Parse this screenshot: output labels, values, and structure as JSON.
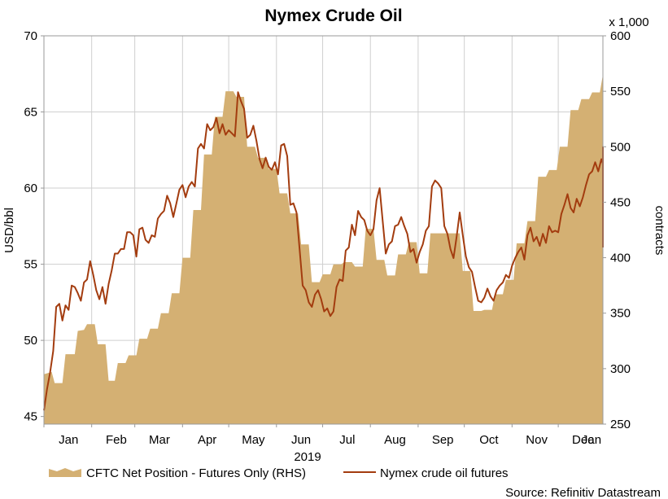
{
  "chart_data": {
    "type": "area",
    "title": "Nymex Crude Oil",
    "xlabel": "2019",
    "ylabel": "USD/bbl",
    "ylabel_right": "contracts",
    "right_multiplier_label": "x 1,000",
    "source": "Source: Refinitiv Datastream",
    "grid": true,
    "legend_position": "bottom",
    "ylim": [
      44.5,
      70
    ],
    "ylim_right": [
      250,
      600
    ],
    "yticks": [
      "45",
      "50",
      "55",
      "60",
      "65",
      "70"
    ],
    "yticks_right": [
      "250",
      "300",
      "350",
      "400",
      "450",
      "500",
      "550",
      "600"
    ],
    "x_range_days": [
      0,
      363
    ],
    "x_tick_labels": [
      {
        "label": "Jan",
        "day": 16
      },
      {
        "label": "Feb",
        "day": 47
      },
      {
        "label": "Mar",
        "day": 75
      },
      {
        "label": "Apr",
        "day": 106
      },
      {
        "label": "May",
        "day": 136
      },
      {
        "label": "Jun",
        "day": 167
      },
      {
        "label": "Jul",
        "day": 197
      },
      {
        "label": "Aug",
        "day": 228
      },
      {
        "label": "Sep",
        "day": 259
      },
      {
        "label": "Oct",
        "day": 289
      },
      {
        "label": "Nov",
        "day": 320
      },
      {
        "label": "Dec",
        "day": 350
      },
      {
        "label": "Jan",
        "day": 377
      }
    ],
    "x_gridlines_days": [
      0,
      31,
      59,
      90,
      120,
      151,
      181,
      212,
      243,
      273,
      304,
      334,
      365
    ],
    "series": [
      {
        "name": "CFTC Net Position - Futures Only (RHS)",
        "type": "area",
        "axis": "right",
        "color": "#d4b073",
        "points": [
          [
            0,
            295
          ],
          [
            5,
            297
          ],
          [
            7,
            287
          ],
          [
            12,
            287
          ],
          [
            14,
            313
          ],
          [
            20,
            313
          ],
          [
            22,
            334
          ],
          [
            26,
            335
          ],
          [
            28,
            340
          ],
          [
            33,
            340
          ],
          [
            35,
            322
          ],
          [
            40,
            322
          ],
          [
            42,
            289
          ],
          [
            46,
            289
          ],
          [
            48,
            305
          ],
          [
            53,
            305
          ],
          [
            55,
            312
          ],
          [
            60,
            312
          ],
          [
            62,
            327
          ],
          [
            67,
            327
          ],
          [
            69,
            336
          ],
          [
            74,
            336
          ],
          [
            76,
            350
          ],
          [
            81,
            350
          ],
          [
            83,
            368
          ],
          [
            88,
            368
          ],
          [
            90,
            400
          ],
          [
            95,
            400
          ],
          [
            97,
            443
          ],
          [
            102,
            443
          ],
          [
            104,
            493
          ],
          [
            109,
            493
          ],
          [
            111,
            527
          ],
          [
            116,
            527
          ],
          [
            118,
            550
          ],
          [
            123,
            550
          ],
          [
            125,
            545
          ],
          [
            130,
            545
          ],
          [
            132,
            500
          ],
          [
            137,
            500
          ],
          [
            139,
            490
          ],
          [
            144,
            490
          ],
          [
            146,
            480
          ],
          [
            151,
            480
          ],
          [
            153,
            458
          ],
          [
            158,
            458
          ],
          [
            160,
            440
          ],
          [
            165,
            440
          ],
          [
            167,
            412
          ],
          [
            172,
            412
          ],
          [
            174,
            378
          ],
          [
            179,
            378
          ],
          [
            181,
            385
          ],
          [
            186,
            385
          ],
          [
            188,
            394
          ],
          [
            193,
            394
          ],
          [
            195,
            396
          ],
          [
            200,
            396
          ],
          [
            202,
            392
          ],
          [
            207,
            392
          ],
          [
            209,
            426
          ],
          [
            214,
            426
          ],
          [
            216,
            398
          ],
          [
            221,
            398
          ],
          [
            223,
            384
          ],
          [
            228,
            384
          ],
          [
            230,
            403
          ],
          [
            235,
            403
          ],
          [
            237,
            414
          ],
          [
            242,
            414
          ],
          [
            244,
            386
          ],
          [
            249,
            386
          ],
          [
            251,
            422
          ],
          [
            256,
            422
          ],
          [
            258,
            422
          ],
          [
            263,
            422
          ],
          [
            265,
            422
          ],
          [
            270,
            422
          ],
          [
            272,
            388
          ],
          [
            277,
            388
          ],
          [
            279,
            352
          ],
          [
            284,
            352
          ],
          [
            286,
            353
          ],
          [
            291,
            353
          ],
          [
            293,
            367
          ],
          [
            298,
            367
          ],
          [
            300,
            380
          ],
          [
            305,
            380
          ],
          [
            307,
            413
          ],
          [
            312,
            413
          ],
          [
            314,
            433
          ],
          [
            319,
            433
          ],
          [
            321,
            473
          ],
          [
            326,
            473
          ],
          [
            328,
            479
          ],
          [
            333,
            479
          ],
          [
            335,
            500
          ],
          [
            340,
            500
          ],
          [
            342,
            533
          ],
          [
            347,
            533
          ],
          [
            349,
            543
          ],
          [
            354,
            543
          ],
          [
            356,
            549
          ],
          [
            361,
            549
          ],
          [
            363,
            565
          ],
          [
            368,
            565
          ],
          [
            370,
            531
          ],
          [
            375,
            531
          ],
          [
            377,
            522
          ],
          [
            380,
            522
          ]
        ]
      },
      {
        "name": "Nymex crude oil futures",
        "type": "line",
        "axis": "left",
        "color": "#a33c0f",
        "points": [
          [
            0,
            45.4
          ],
          [
            2,
            46.8
          ],
          [
            4,
            47.9
          ],
          [
            6,
            49.3
          ],
          [
            8,
            52.2
          ],
          [
            10,
            52.4
          ],
          [
            12,
            51.3
          ],
          [
            14,
            52.3
          ],
          [
            16,
            52.0
          ],
          [
            18,
            53.6
          ],
          [
            20,
            53.5
          ],
          [
            22,
            53.1
          ],
          [
            24,
            52.6
          ],
          [
            26,
            53.8
          ],
          [
            28,
            54.0
          ],
          [
            30,
            55.2
          ],
          [
            32,
            54.3
          ],
          [
            34,
            53.3
          ],
          [
            36,
            52.7
          ],
          [
            38,
            53.5
          ],
          [
            40,
            52.4
          ],
          [
            42,
            53.7
          ],
          [
            44,
            54.6
          ],
          [
            46,
            55.7
          ],
          [
            48,
            55.7
          ],
          [
            50,
            56.0
          ],
          [
            52,
            56.0
          ],
          [
            54,
            57.1
          ],
          [
            56,
            57.1
          ],
          [
            58,
            56.9
          ],
          [
            60,
            55.5
          ],
          [
            62,
            57.3
          ],
          [
            64,
            57.4
          ],
          [
            66,
            56.6
          ],
          [
            68,
            56.4
          ],
          [
            70,
            56.9
          ],
          [
            72,
            56.8
          ],
          [
            74,
            58.0
          ],
          [
            76,
            58.3
          ],
          [
            78,
            58.5
          ],
          [
            80,
            59.5
          ],
          [
            82,
            59.0
          ],
          [
            84,
            58.1
          ],
          [
            86,
            59.0
          ],
          [
            88,
            59.9
          ],
          [
            90,
            60.2
          ],
          [
            92,
            59.4
          ],
          [
            94,
            60.1
          ],
          [
            96,
            60.4
          ],
          [
            98,
            60.1
          ],
          [
            100,
            62.6
          ],
          [
            102,
            62.9
          ],
          [
            104,
            62.6
          ],
          [
            106,
            64.2
          ],
          [
            108,
            63.8
          ],
          [
            110,
            64.0
          ],
          [
            112,
            64.6
          ],
          [
            114,
            63.6
          ],
          [
            116,
            64.2
          ],
          [
            118,
            63.5
          ],
          [
            120,
            63.8
          ],
          [
            122,
            63.6
          ],
          [
            124,
            63.4
          ],
          [
            126,
            66.3
          ],
          [
            128,
            65.7
          ],
          [
            130,
            65.2
          ],
          [
            132,
            63.3
          ],
          [
            134,
            63.5
          ],
          [
            136,
            64.1
          ],
          [
            138,
            63.1
          ],
          [
            140,
            61.9
          ],
          [
            142,
            61.3
          ],
          [
            144,
            62.0
          ],
          [
            146,
            61.4
          ],
          [
            148,
            61.2
          ],
          [
            150,
            61.7
          ],
          [
            152,
            60.9
          ],
          [
            154,
            62.8
          ],
          [
            156,
            62.9
          ],
          [
            158,
            62.1
          ],
          [
            160,
            58.9
          ],
          [
            162,
            59.0
          ],
          [
            164,
            58.4
          ],
          [
            166,
            56.0
          ],
          [
            168,
            53.6
          ],
          [
            170,
            53.3
          ],
          [
            172,
            52.5
          ],
          [
            174,
            52.2
          ],
          [
            176,
            53.0
          ],
          [
            178,
            53.3
          ],
          [
            180,
            52.7
          ],
          [
            182,
            51.9
          ],
          [
            184,
            52.1
          ],
          [
            186,
            51.6
          ],
          [
            188,
            51.9
          ],
          [
            190,
            53.5
          ],
          [
            192,
            54.0
          ],
          [
            194,
            53.9
          ],
          [
            196,
            55.9
          ],
          [
            198,
            56.1
          ],
          [
            200,
            57.6
          ],
          [
            202,
            56.9
          ],
          [
            204,
            58.5
          ],
          [
            206,
            58.1
          ],
          [
            208,
            57.9
          ],
          [
            210,
            57.2
          ],
          [
            212,
            56.9
          ],
          [
            214,
            57.3
          ],
          [
            216,
            59.2
          ],
          [
            218,
            60.0
          ],
          [
            220,
            57.8
          ],
          [
            222,
            55.7
          ],
          [
            224,
            56.3
          ],
          [
            226,
            56.5
          ],
          [
            228,
            57.5
          ],
          [
            230,
            57.6
          ],
          [
            232,
            58.1
          ],
          [
            234,
            57.5
          ],
          [
            236,
            57.0
          ],
          [
            238,
            55.8
          ],
          [
            240,
            56.0
          ],
          [
            242,
            55.1
          ],
          [
            244,
            55.8
          ],
          [
            246,
            56.3
          ],
          [
            248,
            57.2
          ],
          [
            250,
            57.5
          ],
          [
            252,
            60.1
          ],
          [
            254,
            60.5
          ],
          [
            256,
            60.3
          ],
          [
            258,
            60.0
          ],
          [
            260,
            57.5
          ],
          [
            262,
            57.0
          ],
          [
            264,
            56.0
          ],
          [
            266,
            55.4
          ],
          [
            268,
            56.8
          ],
          [
            270,
            58.4
          ],
          [
            272,
            56.9
          ],
          [
            274,
            55.5
          ],
          [
            276,
            54.8
          ],
          [
            278,
            54.5
          ],
          [
            280,
            53.5
          ],
          [
            282,
            52.6
          ],
          [
            284,
            52.5
          ],
          [
            286,
            52.8
          ],
          [
            288,
            53.4
          ],
          [
            290,
            52.9
          ],
          [
            292,
            52.6
          ],
          [
            294,
            53.3
          ],
          [
            296,
            53.6
          ],
          [
            298,
            53.8
          ],
          [
            300,
            54.3
          ],
          [
            302,
            54.1
          ],
          [
            304,
            54.9
          ],
          [
            306,
            55.4
          ],
          [
            308,
            55.8
          ],
          [
            310,
            56.1
          ],
          [
            312,
            55.3
          ],
          [
            314,
            56.9
          ],
          [
            316,
            57.4
          ],
          [
            318,
            56.5
          ],
          [
            320,
            56.8
          ],
          [
            322,
            56.2
          ],
          [
            324,
            57.0
          ],
          [
            326,
            56.4
          ],
          [
            328,
            57.5
          ],
          [
            330,
            57.1
          ],
          [
            332,
            57.2
          ],
          [
            334,
            57.1
          ],
          [
            336,
            58.3
          ],
          [
            338,
            58.9
          ],
          [
            340,
            59.6
          ],
          [
            342,
            58.7
          ],
          [
            344,
            58.4
          ],
          [
            346,
            59.3
          ],
          [
            348,
            58.8
          ],
          [
            350,
            59.4
          ],
          [
            352,
            60.2
          ],
          [
            354,
            60.9
          ],
          [
            356,
            61.1
          ],
          [
            358,
            61.7
          ],
          [
            360,
            61.1
          ],
          [
            362,
            61.9
          ],
          [
            364,
            61.6
          ],
          [
            366,
            62.7
          ],
          [
            368,
            61.2
          ],
          [
            370,
            59.6
          ],
          [
            372,
            59.0
          ],
          [
            374,
            58.3
          ],
          [
            376,
            58.6
          ],
          [
            378,
            58.2
          ],
          [
            380,
            56.1
          ]
        ]
      }
    ]
  }
}
